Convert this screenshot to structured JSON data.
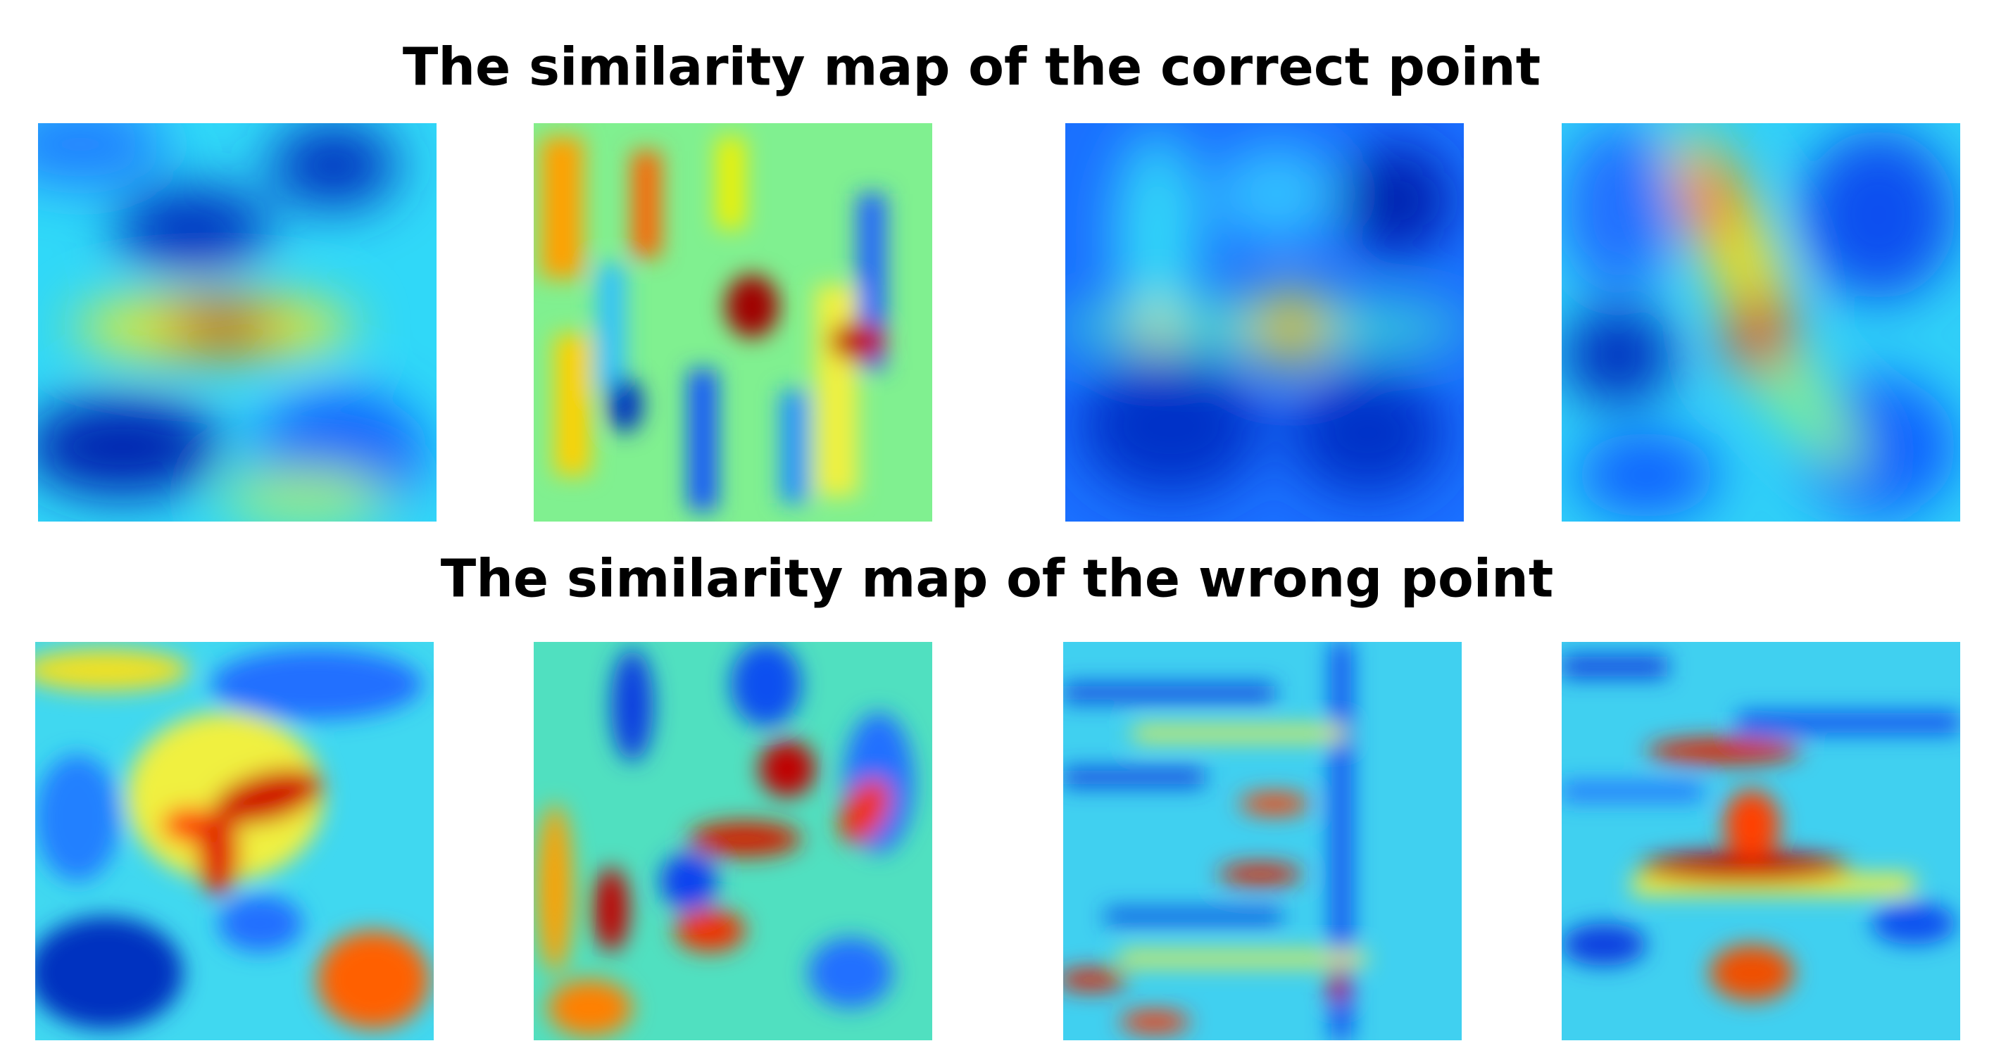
{
  "rows": [
    {
      "title": "The similarity map of the correct point"
    },
    {
      "title": "The similarity map of the wrong point"
    }
  ]
}
